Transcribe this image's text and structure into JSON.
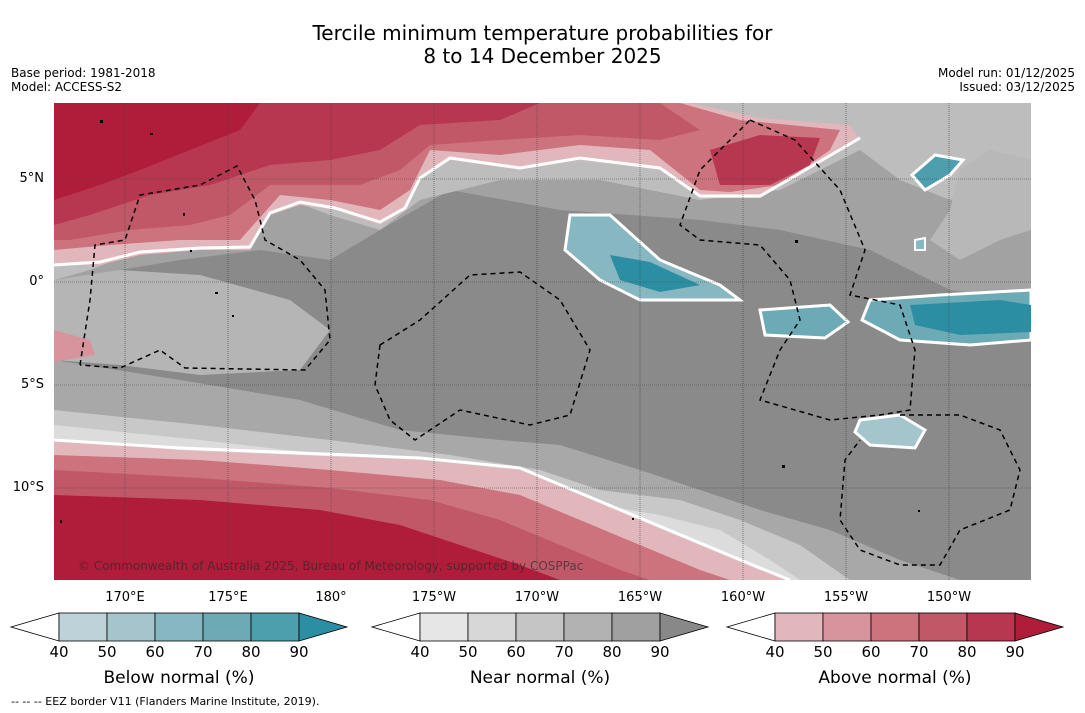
{
  "title": {
    "line1": "Tercile minimum temperature probabilities for",
    "line2": "8 to 14 December 2025"
  },
  "meta": {
    "base_period": "Base period: 1981-2018",
    "model": "Model: ACCESS-S2",
    "model_run": "Model run: 01/12/2025",
    "issued": "Issued: 03/12/2025"
  },
  "map": {
    "latitudes": [
      "5°N",
      "0°",
      "5°S",
      "10°S"
    ],
    "longitudes": [
      "170°E",
      "175°E",
      "180°",
      "175°W",
      "170°W",
      "165°W",
      "160°W",
      "155°W",
      "150°W"
    ],
    "copyright": "© Commonwealth of Australia 2025, Bureau of Meteorology, supported by COSPPac"
  },
  "colorbars": {
    "below": {
      "label": "Below normal (%)",
      "ticks": [
        "40",
        "50",
        "60",
        "70",
        "80",
        "90"
      ],
      "colors": [
        "#bed3d9",
        "#a4c5cc",
        "#87b7c0",
        "#6cabb6",
        "#4d9fad",
        "#2c8ea3"
      ]
    },
    "near": {
      "label": "Near normal (%)",
      "ticks": [
        "40",
        "50",
        "60",
        "70",
        "80",
        "90"
      ],
      "colors": [
        "#e6e6e6",
        "#d7d7d7",
        "#c5c5c5",
        "#b2b2b2",
        "#a0a0a0",
        "#888888"
      ]
    },
    "above": {
      "label": "Above normal (%)",
      "ticks": [
        "40",
        "50",
        "60",
        "70",
        "80",
        "90"
      ],
      "colors": [
        "#e2b7bc",
        "#d8949c",
        "#cd737e",
        "#c15868",
        "#b73751",
        "#b01d3a"
      ]
    }
  },
  "footnote": "--  --  -- EEZ border V11 (Flanders Marine Institute, 2019)."
}
